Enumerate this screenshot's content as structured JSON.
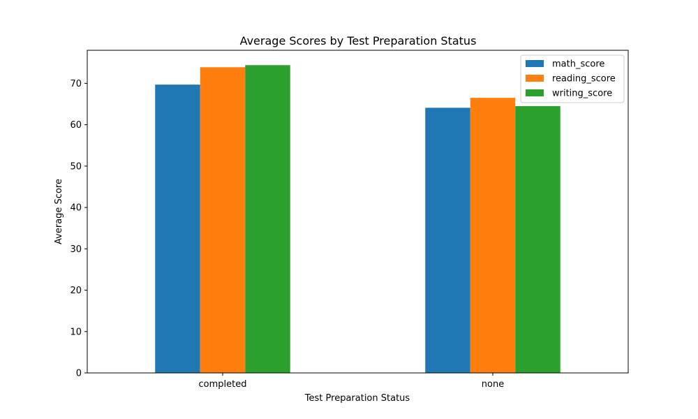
{
  "chart_data": {
    "type": "bar",
    "title": "Average Scores by Test Preparation Status",
    "xlabel": "Test Preparation Status",
    "ylabel": "Average Score",
    "categories": [
      "completed",
      "none"
    ],
    "series": [
      {
        "name": "math_score",
        "values": [
          69.7,
          64.1
        ],
        "color": "#1f77b4"
      },
      {
        "name": "reading_score",
        "values": [
          73.9,
          66.5
        ],
        "color": "#ff7f0e"
      },
      {
        "name": "writing_score",
        "values": [
          74.4,
          64.5
        ],
        "color": "#2ca02c"
      }
    ],
    "ylim": [
      0,
      78
    ],
    "yticks": [
      0,
      10,
      20,
      30,
      40,
      50,
      60,
      70
    ],
    "legend_position": "top-right",
    "grid": false
  }
}
